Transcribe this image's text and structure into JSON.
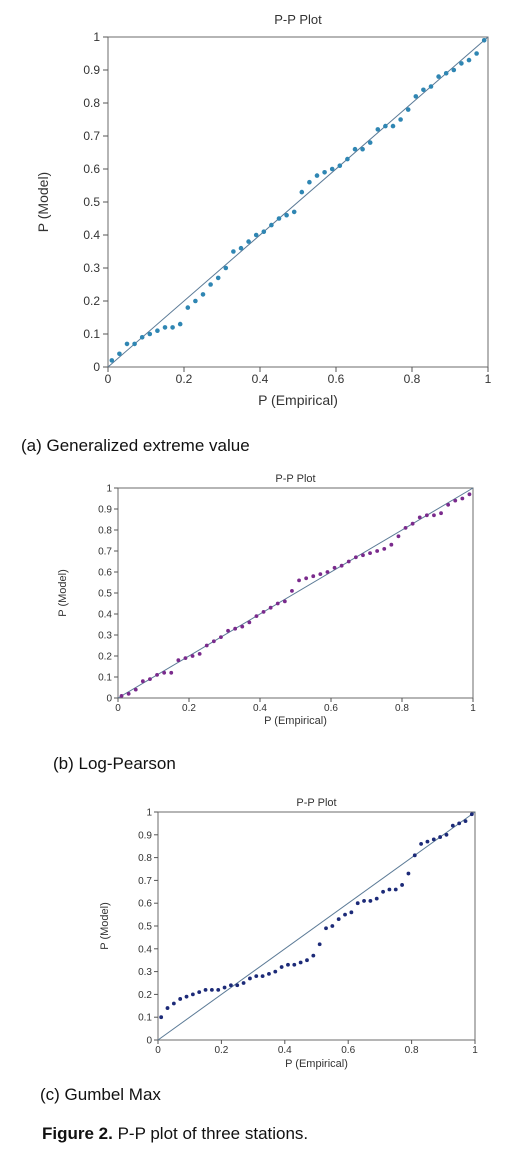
{
  "figure": {
    "label": "Figure 2.",
    "text": " P-P plot of three stations."
  },
  "chart_data": [
    {
      "type": "scatter",
      "title": "P-P Plot",
      "xlabel": "P (Empirical)",
      "ylabel": "P (Model)",
      "caption": "(a) Generalized extreme value",
      "xlim": [
        0,
        1
      ],
      "ylim": [
        0,
        1
      ],
      "xticks": [
        "0",
        "0.2",
        "0.4",
        "0.6",
        "0.8",
        "1"
      ],
      "yticks": [
        "0",
        "0.1",
        "0.2",
        "0.3",
        "0.4",
        "0.5",
        "0.6",
        "0.7",
        "0.8",
        "0.9",
        "1"
      ],
      "point_color": "#2f86b3",
      "line_color": "#5b7a96",
      "reference_line": [
        [
          0,
          0
        ],
        [
          1,
          1
        ]
      ],
      "x": [
        0.01,
        0.03,
        0.05,
        0.07,
        0.09,
        0.11,
        0.13,
        0.15,
        0.17,
        0.19,
        0.21,
        0.23,
        0.25,
        0.27,
        0.29,
        0.31,
        0.33,
        0.35,
        0.37,
        0.39,
        0.41,
        0.43,
        0.45,
        0.47,
        0.49,
        0.51,
        0.53,
        0.55,
        0.57,
        0.59,
        0.61,
        0.63,
        0.65,
        0.67,
        0.69,
        0.71,
        0.73,
        0.75,
        0.77,
        0.79,
        0.81,
        0.83,
        0.85,
        0.87,
        0.89,
        0.91,
        0.93,
        0.95,
        0.97,
        0.99
      ],
      "y": [
        0.02,
        0.04,
        0.07,
        0.07,
        0.09,
        0.1,
        0.11,
        0.12,
        0.12,
        0.13,
        0.18,
        0.2,
        0.22,
        0.25,
        0.27,
        0.3,
        0.35,
        0.36,
        0.38,
        0.4,
        0.41,
        0.43,
        0.45,
        0.46,
        0.47,
        0.53,
        0.56,
        0.58,
        0.59,
        0.6,
        0.61,
        0.63,
        0.66,
        0.66,
        0.68,
        0.72,
        0.73,
        0.73,
        0.75,
        0.78,
        0.82,
        0.84,
        0.85,
        0.88,
        0.89,
        0.9,
        0.92,
        0.93,
        0.95,
        0.99
      ]
    },
    {
      "type": "scatter",
      "title": "P-P Plot",
      "xlabel": "P (Empirical)",
      "ylabel": "P (Model)",
      "caption": "(b) Log-Pearson",
      "xlim": [
        0,
        1
      ],
      "ylim": [
        0,
        1
      ],
      "xticks": [
        "0",
        "0.2",
        "0.4",
        "0.6",
        "0.8",
        "1"
      ],
      "yticks": [
        "0",
        "0.1",
        "0.2",
        "0.3",
        "0.4",
        "0.5",
        "0.6",
        "0.7",
        "0.8",
        "0.9",
        "1"
      ],
      "point_color": "#7a2a8c",
      "line_color": "#5b7a96",
      "reference_line": [
        [
          0,
          0
        ],
        [
          1,
          1
        ]
      ],
      "x": [
        0.01,
        0.03,
        0.05,
        0.07,
        0.09,
        0.11,
        0.13,
        0.15,
        0.17,
        0.19,
        0.21,
        0.23,
        0.25,
        0.27,
        0.29,
        0.31,
        0.33,
        0.35,
        0.37,
        0.39,
        0.41,
        0.43,
        0.45,
        0.47,
        0.49,
        0.51,
        0.53,
        0.55,
        0.57,
        0.59,
        0.61,
        0.63,
        0.65,
        0.67,
        0.69,
        0.71,
        0.73,
        0.75,
        0.77,
        0.79,
        0.81,
        0.83,
        0.85,
        0.87,
        0.89,
        0.91,
        0.93,
        0.95,
        0.97,
        0.99
      ],
      "y": [
        0.01,
        0.02,
        0.04,
        0.08,
        0.09,
        0.11,
        0.12,
        0.12,
        0.18,
        0.19,
        0.2,
        0.21,
        0.25,
        0.27,
        0.29,
        0.32,
        0.33,
        0.34,
        0.36,
        0.39,
        0.41,
        0.43,
        0.45,
        0.46,
        0.51,
        0.56,
        0.57,
        0.58,
        0.59,
        0.6,
        0.62,
        0.63,
        0.65,
        0.67,
        0.68,
        0.69,
        0.7,
        0.71,
        0.73,
        0.77,
        0.81,
        0.83,
        0.86,
        0.87,
        0.87,
        0.88,
        0.92,
        0.94,
        0.95,
        0.97
      ]
    },
    {
      "type": "scatter",
      "title": "P-P Plot",
      "xlabel": "P (Empirical)",
      "ylabel": "P (Model)",
      "caption": "(c) Gumbel Max",
      "xlim": [
        0,
        1
      ],
      "ylim": [
        0,
        1
      ],
      "xticks": [
        "0",
        "0.2",
        "0.4",
        "0.6",
        "0.8",
        "1"
      ],
      "yticks": [
        "0",
        "0.1",
        "0.2",
        "0.3",
        "0.4",
        "0.5",
        "0.6",
        "0.7",
        "0.8",
        "0.9",
        "1"
      ],
      "point_color": "#1c2a78",
      "line_color": "#5b7a96",
      "reference_line": [
        [
          0,
          0
        ],
        [
          1,
          1
        ]
      ],
      "x": [
        0.01,
        0.03,
        0.05,
        0.07,
        0.09,
        0.11,
        0.13,
        0.15,
        0.17,
        0.19,
        0.21,
        0.23,
        0.25,
        0.27,
        0.29,
        0.31,
        0.33,
        0.35,
        0.37,
        0.39,
        0.41,
        0.43,
        0.45,
        0.47,
        0.49,
        0.51,
        0.53,
        0.55,
        0.57,
        0.59,
        0.61,
        0.63,
        0.65,
        0.67,
        0.69,
        0.71,
        0.73,
        0.75,
        0.77,
        0.79,
        0.81,
        0.83,
        0.85,
        0.87,
        0.89,
        0.91,
        0.93,
        0.95,
        0.97,
        0.99
      ],
      "y": [
        0.1,
        0.14,
        0.16,
        0.18,
        0.19,
        0.2,
        0.21,
        0.22,
        0.22,
        0.22,
        0.23,
        0.24,
        0.24,
        0.25,
        0.27,
        0.28,
        0.28,
        0.29,
        0.3,
        0.32,
        0.33,
        0.33,
        0.34,
        0.35,
        0.37,
        0.42,
        0.49,
        0.5,
        0.53,
        0.55,
        0.56,
        0.6,
        0.61,
        0.61,
        0.62,
        0.65,
        0.66,
        0.66,
        0.68,
        0.73,
        0.81,
        0.86,
        0.87,
        0.88,
        0.89,
        0.9,
        0.94,
        0.95,
        0.96,
        0.99
      ]
    }
  ]
}
